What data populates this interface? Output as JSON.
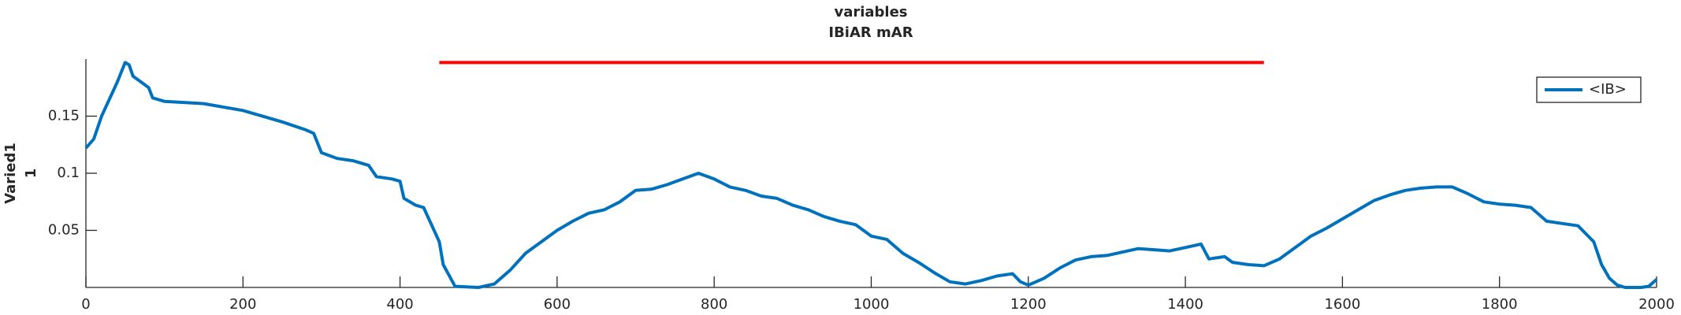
{
  "chart_data": {
    "type": "line",
    "title": [
      "variables",
      "IBiAR mAR"
    ],
    "ylabel": [
      "Varied1",
      "1"
    ],
    "x": [
      0,
      10,
      20,
      30,
      40,
      50,
      55,
      60,
      70,
      80,
      85,
      100,
      150,
      200,
      250,
      280,
      290,
      300,
      320,
      340,
      360,
      370,
      390,
      400,
      405,
      420,
      430,
      440,
      450,
      455,
      470,
      500,
      520,
      540,
      560,
      580,
      600,
      620,
      640,
      660,
      680,
      700,
      720,
      740,
      760,
      780,
      800,
      820,
      840,
      860,
      880,
      900,
      920,
      940,
      960,
      980,
      1000,
      1020,
      1040,
      1060,
      1080,
      1100,
      1120,
      1140,
      1160,
      1180,
      1190,
      1200,
      1220,
      1240,
      1260,
      1280,
      1300,
      1320,
      1340,
      1360,
      1380,
      1400,
      1420,
      1430,
      1450,
      1460,
      1480,
      1500,
      1520,
      1540,
      1560,
      1580,
      1600,
      1620,
      1640,
      1660,
      1680,
      1700,
      1720,
      1740,
      1760,
      1780,
      1800,
      1820,
      1840,
      1860,
      1880,
      1900,
      1920,
      1930,
      1940,
      1950,
      1960,
      1980,
      1990,
      2000
    ],
    "series": [
      {
        "name": "<IB>",
        "color": "#0072bd",
        "values": [
          0.122,
          0.13,
          0.15,
          0.165,
          0.18,
          0.197,
          0.195,
          0.185,
          0.18,
          0.175,
          0.166,
          0.163,
          0.161,
          0.155,
          0.145,
          0.138,
          0.135,
          0.118,
          0.113,
          0.111,
          0.107,
          0.097,
          0.095,
          0.093,
          0.078,
          0.072,
          0.07,
          0.055,
          0.04,
          0.02,
          0.001,
          0,
          0.003,
          0.015,
          0.03,
          0.04,
          0.05,
          0.058,
          0.065,
          0.068,
          0.075,
          0.085,
          0.086,
          0.09,
          0.095,
          0.1,
          0.095,
          0.088,
          0.085,
          0.08,
          0.078,
          0.072,
          0.068,
          0.062,
          0.058,
          0.055,
          0.045,
          0.042,
          0.03,
          0.022,
          0.013,
          0.005,
          0.003,
          0.006,
          0.01,
          0.012,
          0.005,
          0.002,
          0.008,
          0.017,
          0.024,
          0.027,
          0.028,
          0.031,
          0.034,
          0.033,
          0.032,
          0.035,
          0.038,
          0.025,
          0.027,
          0.022,
          0.02,
          0.019,
          0.025,
          0.035,
          0.045,
          0.052,
          0.06,
          0.068,
          0.076,
          0.081,
          0.085,
          0.087,
          0.088,
          0.088,
          0.082,
          0.075,
          0.073,
          0.072,
          0.07,
          0.058,
          0.056,
          0.054,
          0.04,
          0.02,
          0.008,
          0.002,
          0,
          0,
          0.001,
          0.007
        ]
      }
    ],
    "annotation_line": {
      "x": [
        450,
        1500
      ],
      "y": [
        0.197,
        0.197
      ],
      "color": "#ff0000"
    },
    "xlim": [
      0,
      2000
    ],
    "xticks": [
      0,
      200,
      400,
      600,
      800,
      1000,
      1200,
      1400,
      1600,
      1800,
      2000
    ],
    "ylim": [
      0,
      0.2
    ],
    "yticks": [
      0.05,
      0.1,
      0.15
    ],
    "legend": "top-right"
  }
}
